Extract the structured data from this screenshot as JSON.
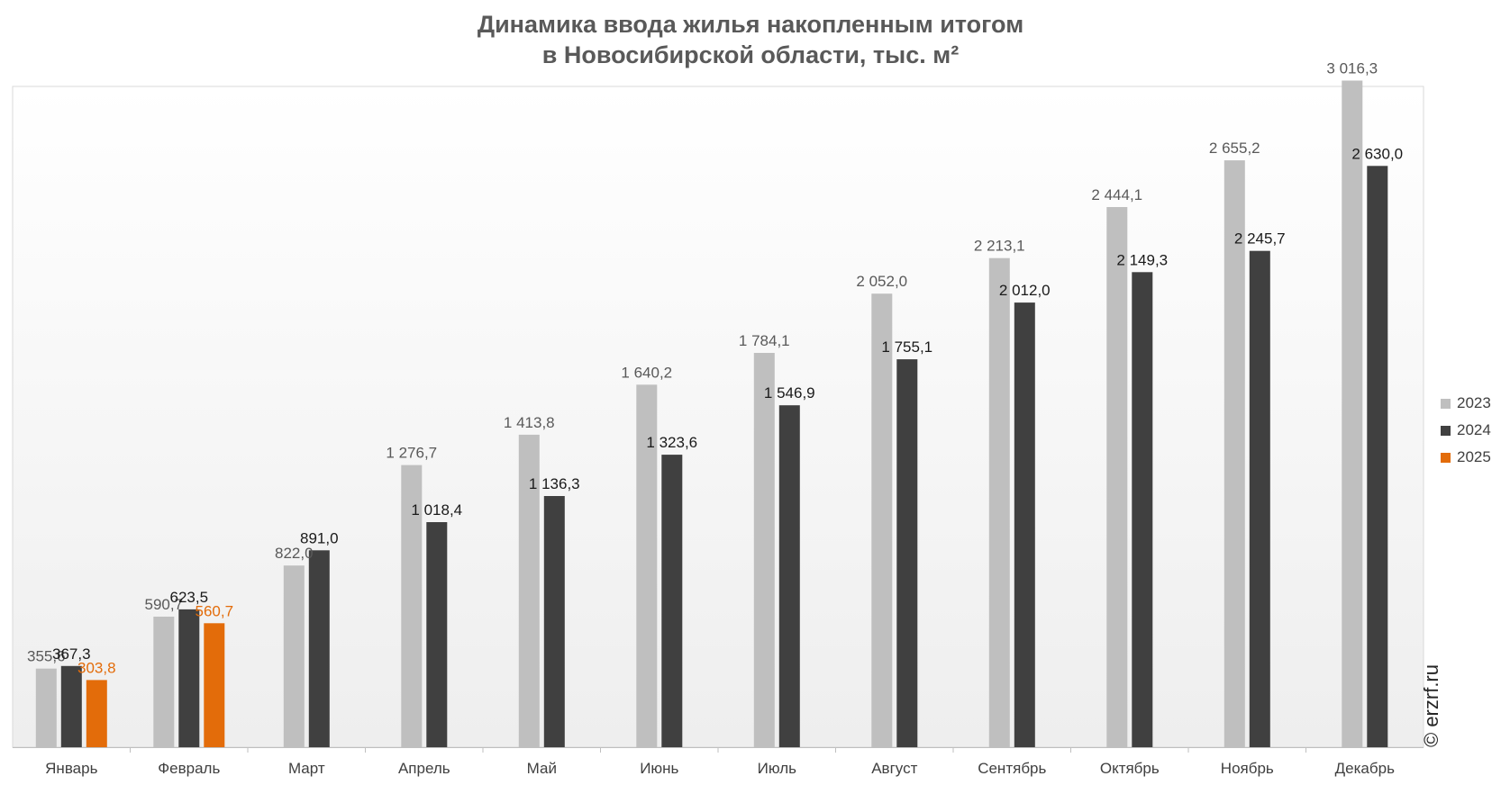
{
  "title_line1": "Динамика ввода жилья накопленным итогом",
  "title_line2": "в Новосибирской области, тыс. м²",
  "watermark": "© erzrf.ru",
  "colors": {
    "s2023": "#bfbfbf",
    "s2024": "#404040",
    "s2025": "#e36c0a",
    "label2023": "#595959",
    "label2024": "#1a1a1a",
    "label2025": "#e36c0a",
    "axis_label": "#404040",
    "plot_bg_top": "#ffffff",
    "plot_bg_bottom": "#eeeeee"
  },
  "chart_data": {
    "type": "bar",
    "title": "Динамика ввода жилья накопленным итогом в Новосибирской области, тыс. м²",
    "categories": [
      "Январь",
      "Февраль",
      "Март",
      "Апрель",
      "Май",
      "Июнь",
      "Июль",
      "Август",
      "Сентябрь",
      "Октябрь",
      "Ноябрь",
      "Декабрь"
    ],
    "series": [
      {
        "name": "2023",
        "values": [
          355.6,
          590.7,
          822.0,
          1276.7,
          1413.8,
          1640.2,
          1784.1,
          2052.0,
          2213.1,
          2444.1,
          2655.2,
          3016.3
        ],
        "labels": [
          "355,6",
          "590,7",
          "822,0",
          "1 276,7",
          "1 413,8",
          "1 640,2",
          "1 784,1",
          "2 052,0",
          "2 213,1",
          "2 444,1",
          "2 655,2",
          "3 016,3"
        ]
      },
      {
        "name": "2024",
        "values": [
          367.3,
          623.5,
          891.0,
          1018.4,
          1136.3,
          1323.6,
          1546.9,
          1755.1,
          2012.0,
          2149.3,
          2245.7,
          2630.0
        ],
        "labels": [
          "367,3",
          "623,5",
          "891,0",
          "1 018,4",
          "1 136,3",
          "1 323,6",
          "1 546,9",
          "1 755,1",
          "2 012,0",
          "2 149,3",
          "2 245,7",
          "2 630,0"
        ]
      },
      {
        "name": "2025",
        "values": [
          303.8,
          560.7,
          null,
          null,
          null,
          null,
          null,
          null,
          null,
          null,
          null,
          null
        ],
        "labels": [
          "303,8",
          "560,7",
          "",
          "",
          "",
          "",
          "",
          "",
          "",
          "",
          "",
          ""
        ]
      }
    ],
    "ylim": [
      0,
      3500
    ],
    "grid": false,
    "legend": "right"
  }
}
